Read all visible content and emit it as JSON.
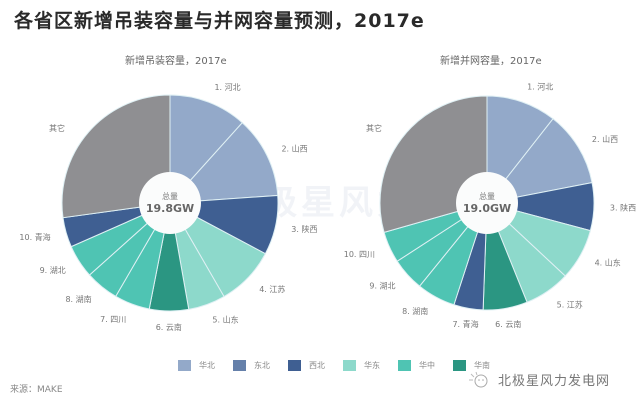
{
  "title": "各省区新增吊装容量与并网容量预测，2017e",
  "watermark": "北极星风力",
  "chart_data": [
    {
      "type": "pie",
      "title": "新增吊装容量，2017e",
      "center_label": "总量",
      "center_value": "19.8GW",
      "total": 19.8,
      "unit": "GW",
      "slices": [
        {
          "label": "1. 河北",
          "value": 2.31,
          "region": "华北"
        },
        {
          "label": "2. 山西",
          "value": 2.42,
          "region": "华北"
        },
        {
          "label": "3. 陕西",
          "value": 1.76,
          "region": "西北"
        },
        {
          "label": "4. 江苏",
          "value": 1.76,
          "region": "华东"
        },
        {
          "label": "5. 山东",
          "value": 1.1,
          "region": "华东"
        },
        {
          "label": "6. 云南",
          "value": 1.16,
          "region": "华南"
        },
        {
          "label": "7. 四川",
          "value": 1.05,
          "region": "华中"
        },
        {
          "label": "8. 湖南",
          "value": 0.99,
          "region": "华中"
        },
        {
          "label": "9. 湖北",
          "value": 0.99,
          "region": "华中"
        },
        {
          "label": "10. 青海",
          "value": 0.88,
          "region": "西北"
        },
        {
          "label": "其它",
          "value": 5.38,
          "region": "其它"
        }
      ]
    },
    {
      "type": "pie",
      "title": "新增并网容量，2017e",
      "center_label": "总量",
      "center_value": "19.0GW",
      "total": 19.0,
      "unit": "GW",
      "slices": [
        {
          "label": "1. 河北",
          "value": 2.01,
          "region": "华北"
        },
        {
          "label": "2. 山西",
          "value": 2.16,
          "region": "华北"
        },
        {
          "label": "3. 陕西",
          "value": 1.37,
          "region": "西北"
        },
        {
          "label": "4. 山东",
          "value": 1.48,
          "region": "华东"
        },
        {
          "label": "5. 江苏",
          "value": 1.32,
          "region": "华东"
        },
        {
          "label": "6. 云南",
          "value": 1.27,
          "region": "华南"
        },
        {
          "label": "7. 青海",
          "value": 0.84,
          "region": "西北"
        },
        {
          "label": "8. 湖南",
          "value": 1.11,
          "region": "华中"
        },
        {
          "label": "9. 湖北",
          "value": 0.95,
          "region": "华中"
        },
        {
          "label": "10. 四川",
          "value": 0.9,
          "region": "华中"
        },
        {
          "label": "其它",
          "value": 5.59,
          "region": "其它"
        }
      ]
    }
  ],
  "legend": [
    {
      "label": "华北",
      "color": "#93a9c9"
    },
    {
      "label": "东北",
      "color": "#6580aa"
    },
    {
      "label": "西北",
      "color": "#3f5f92"
    },
    {
      "label": "华东",
      "color": "#8dd9cb"
    },
    {
      "label": "华中",
      "color": "#4fc4b3"
    },
    {
      "label": "华南",
      "color": "#2b9682"
    }
  ],
  "other_color": "#8f8f92",
  "source": "来源：MAKE",
  "brand": "北极星风力发电网"
}
